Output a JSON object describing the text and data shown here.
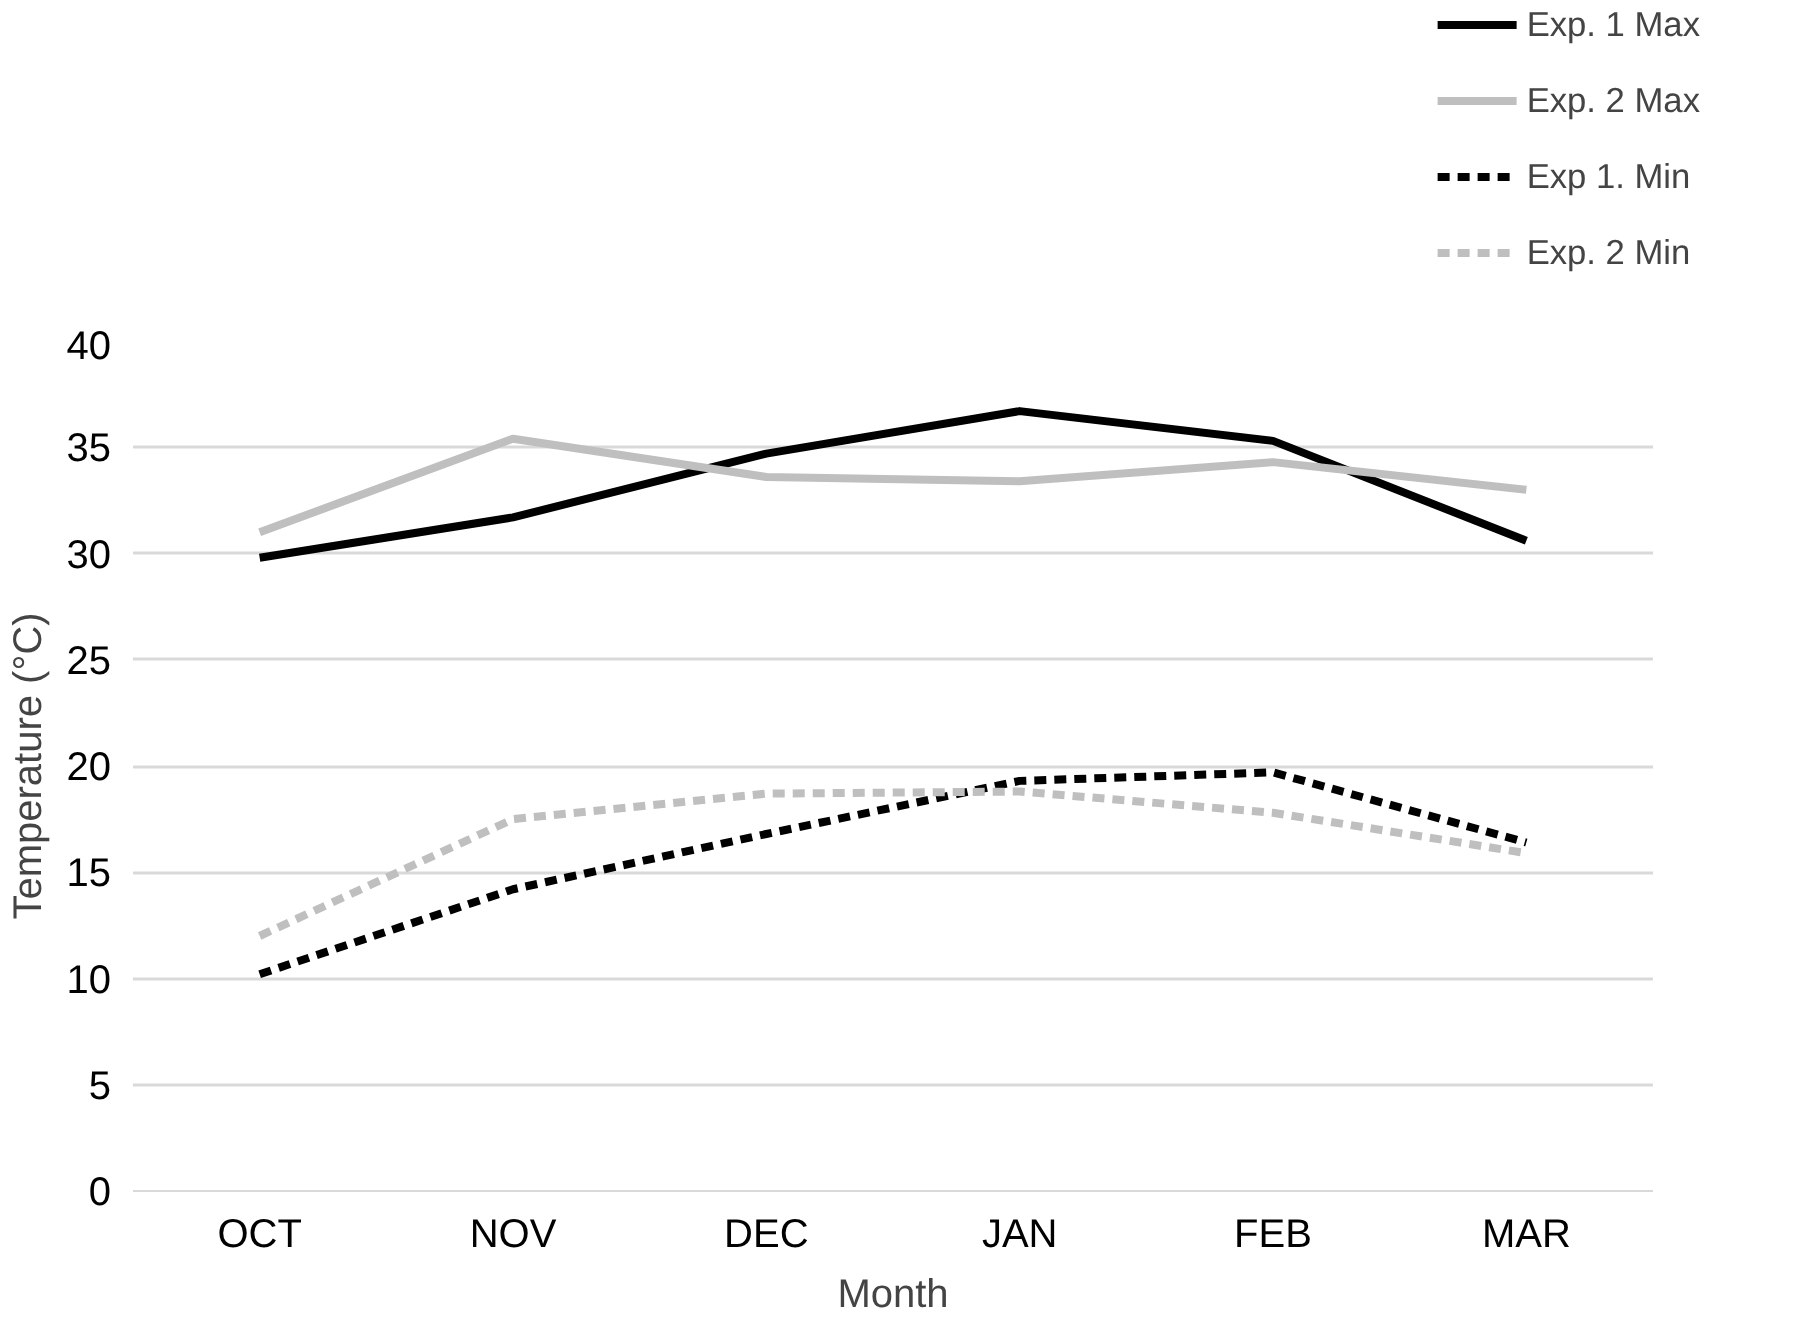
{
  "chart_data": {
    "type": "line",
    "xlabel": "Month",
    "ylabel": "Temperature (°C)",
    "categories": [
      "OCT",
      "NOV",
      "DEC",
      "JAN",
      "FEB",
      "MAR"
    ],
    "series": [
      {
        "name": "Exp. 1 Max",
        "color": "#000000",
        "line_style": "solid",
        "values": [
          29.8,
          31.7,
          34.7,
          36.7,
          35.3,
          30.6
        ]
      },
      {
        "name": "Exp. 2 Max",
        "color": "#bfbfbf",
        "line_style": "solid",
        "values": [
          31.0,
          35.4,
          33.6,
          33.4,
          34.3,
          33.0
        ]
      },
      {
        "name": "Exp 1. Min",
        "color": "#000000",
        "line_style": "dashed",
        "values": [
          10.2,
          14.2,
          16.8,
          19.3,
          19.7,
          16.4
        ]
      },
      {
        "name": "Exp. 2 Min",
        "color": "#bfbfbf",
        "line_style": "dashed",
        "values": [
          12.0,
          17.5,
          18.7,
          18.8,
          17.8,
          15.9
        ]
      }
    ],
    "ylim": [
      0,
      40
    ],
    "yticks": [
      0,
      5,
      10,
      15,
      20,
      25,
      30,
      35,
      40
    ],
    "grid": "y",
    "legend": "top right",
    "marker": "none"
  }
}
